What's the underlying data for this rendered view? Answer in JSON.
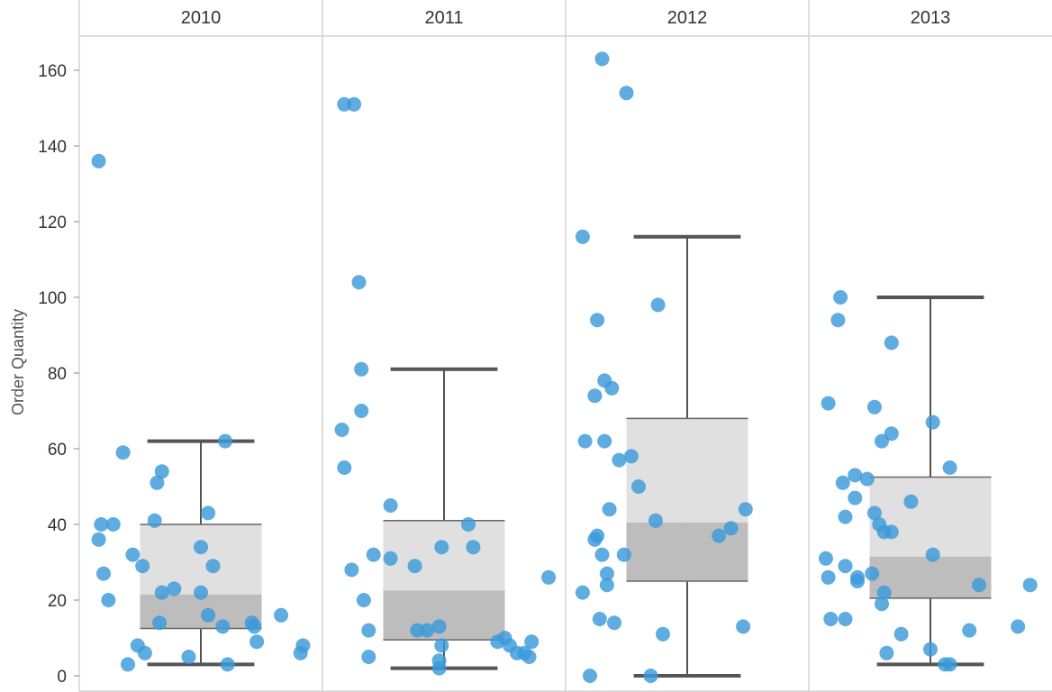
{
  "chart_data": {
    "type": "scatter",
    "subtype": "box-plot-with-jittered-points",
    "ylabel": "Order Quantity",
    "ylim": [
      0,
      170
    ],
    "yticks": [
      0,
      20,
      40,
      60,
      80,
      100,
      120,
      140,
      160
    ],
    "grid": false,
    "point_color": "#3a9ad9",
    "box_upper_color": "#e0e0e0",
    "box_lower_color": "#bdbdbd",
    "whisker_color": "#555555",
    "panels": [
      {
        "year": "2010",
        "box": {
          "whisker_low": 3,
          "q1": 12.5,
          "median": 21.5,
          "q3": 40,
          "whisker_high": 62
        },
        "points": [
          {
            "x": 0.08,
            "y": 136
          },
          {
            "x": 0.08,
            "y": 36
          },
          {
            "x": 0.09,
            "y": 40
          },
          {
            "x": 0.1,
            "y": 27
          },
          {
            "x": 0.12,
            "y": 20
          },
          {
            "x": 0.14,
            "y": 40
          },
          {
            "x": 0.18,
            "y": 59
          },
          {
            "x": 0.2,
            "y": 3
          },
          {
            "x": 0.22,
            "y": 32
          },
          {
            "x": 0.24,
            "y": 8
          },
          {
            "x": 0.26,
            "y": 29
          },
          {
            "x": 0.27,
            "y": 6
          },
          {
            "x": 0.31,
            "y": 41
          },
          {
            "x": 0.32,
            "y": 51
          },
          {
            "x": 0.33,
            "y": 14
          },
          {
            "x": 0.34,
            "y": 54
          },
          {
            "x": 0.34,
            "y": 22
          },
          {
            "x": 0.39,
            "y": 23
          },
          {
            "x": 0.45,
            "y": 5
          },
          {
            "x": 0.5,
            "y": 34
          },
          {
            "x": 0.5,
            "y": 22
          },
          {
            "x": 0.53,
            "y": 16
          },
          {
            "x": 0.53,
            "y": 43
          },
          {
            "x": 0.55,
            "y": 29
          },
          {
            "x": 0.59,
            "y": 13
          },
          {
            "x": 0.6,
            "y": 62
          },
          {
            "x": 0.61,
            "y": 3
          },
          {
            "x": 0.71,
            "y": 14
          },
          {
            "x": 0.72,
            "y": 13
          },
          {
            "x": 0.73,
            "y": 9
          },
          {
            "x": 0.83,
            "y": 16
          },
          {
            "x": 0.91,
            "y": 6
          },
          {
            "x": 0.92,
            "y": 8
          }
        ]
      },
      {
        "year": "2011",
        "box": {
          "whisker_low": 2,
          "q1": 9.5,
          "median": 22.5,
          "q3": 41,
          "whisker_high": 81
        },
        "points": [
          {
            "x": 0.08,
            "y": 65
          },
          {
            "x": 0.09,
            "y": 55
          },
          {
            "x": 0.09,
            "y": 151
          },
          {
            "x": 0.12,
            "y": 28
          },
          {
            "x": 0.13,
            "y": 151
          },
          {
            "x": 0.15,
            "y": 104
          },
          {
            "x": 0.16,
            "y": 70
          },
          {
            "x": 0.16,
            "y": 81
          },
          {
            "x": 0.17,
            "y": 20
          },
          {
            "x": 0.19,
            "y": 5
          },
          {
            "x": 0.19,
            "y": 12
          },
          {
            "x": 0.21,
            "y": 32
          },
          {
            "x": 0.28,
            "y": 45
          },
          {
            "x": 0.28,
            "y": 31
          },
          {
            "x": 0.38,
            "y": 29
          },
          {
            "x": 0.39,
            "y": 12
          },
          {
            "x": 0.43,
            "y": 12
          },
          {
            "x": 0.48,
            "y": 13
          },
          {
            "x": 0.48,
            "y": 4
          },
          {
            "x": 0.48,
            "y": 2
          },
          {
            "x": 0.49,
            "y": 34
          },
          {
            "x": 0.49,
            "y": 8
          },
          {
            "x": 0.6,
            "y": 40
          },
          {
            "x": 0.62,
            "y": 34
          },
          {
            "x": 0.72,
            "y": 9
          },
          {
            "x": 0.75,
            "y": 10
          },
          {
            "x": 0.77,
            "y": 8
          },
          {
            "x": 0.8,
            "y": 6
          },
          {
            "x": 0.83,
            "y": 6
          },
          {
            "x": 0.85,
            "y": 5
          },
          {
            "x": 0.86,
            "y": 9
          },
          {
            "x": 0.93,
            "y": 26
          }
        ]
      },
      {
        "year": "2012",
        "box": {
          "whisker_low": 0,
          "q1": 25,
          "median": 40.5,
          "q3": 68,
          "whisker_high": 116
        },
        "points": [
          {
            "x": 0.07,
            "y": 116
          },
          {
            "x": 0.07,
            "y": 22
          },
          {
            "x": 0.08,
            "y": 62
          },
          {
            "x": 0.1,
            "y": 0
          },
          {
            "x": 0.12,
            "y": 36
          },
          {
            "x": 0.12,
            "y": 74
          },
          {
            "x": 0.13,
            "y": 37
          },
          {
            "x": 0.13,
            "y": 94
          },
          {
            "x": 0.14,
            "y": 15
          },
          {
            "x": 0.15,
            "y": 32
          },
          {
            "x": 0.15,
            "y": 163
          },
          {
            "x": 0.16,
            "y": 62
          },
          {
            "x": 0.16,
            "y": 78
          },
          {
            "x": 0.17,
            "y": 27
          },
          {
            "x": 0.17,
            "y": 24
          },
          {
            "x": 0.18,
            "y": 44
          },
          {
            "x": 0.19,
            "y": 76
          },
          {
            "x": 0.2,
            "y": 14
          },
          {
            "x": 0.22,
            "y": 57
          },
          {
            "x": 0.24,
            "y": 32
          },
          {
            "x": 0.25,
            "y": 154
          },
          {
            "x": 0.27,
            "y": 58
          },
          {
            "x": 0.3,
            "y": 50
          },
          {
            "x": 0.35,
            "y": 0
          },
          {
            "x": 0.37,
            "y": 41
          },
          {
            "x": 0.38,
            "y": 98
          },
          {
            "x": 0.4,
            "y": 11
          },
          {
            "x": 0.63,
            "y": 37
          },
          {
            "x": 0.68,
            "y": 39
          },
          {
            "x": 0.73,
            "y": 13
          },
          {
            "x": 0.74,
            "y": 44
          }
        ]
      },
      {
        "year": "2013",
        "box": {
          "whisker_low": 3,
          "q1": 20.5,
          "median": 31.5,
          "q3": 52.5,
          "whisker_high": 100
        },
        "points": [
          {
            "x": 0.07,
            "y": 31
          },
          {
            "x": 0.08,
            "y": 26
          },
          {
            "x": 0.08,
            "y": 72
          },
          {
            "x": 0.09,
            "y": 15
          },
          {
            "x": 0.12,
            "y": 94
          },
          {
            "x": 0.13,
            "y": 100
          },
          {
            "x": 0.14,
            "y": 51
          },
          {
            "x": 0.15,
            "y": 42
          },
          {
            "x": 0.15,
            "y": 29
          },
          {
            "x": 0.15,
            "y": 15
          },
          {
            "x": 0.19,
            "y": 47
          },
          {
            "x": 0.19,
            "y": 53
          },
          {
            "x": 0.2,
            "y": 25
          },
          {
            "x": 0.2,
            "y": 26
          },
          {
            "x": 0.24,
            "y": 52
          },
          {
            "x": 0.26,
            "y": 27
          },
          {
            "x": 0.27,
            "y": 43
          },
          {
            "x": 0.27,
            "y": 71
          },
          {
            "x": 0.29,
            "y": 40
          },
          {
            "x": 0.3,
            "y": 62
          },
          {
            "x": 0.3,
            "y": 19
          },
          {
            "x": 0.31,
            "y": 38
          },
          {
            "x": 0.31,
            "y": 22
          },
          {
            "x": 0.32,
            "y": 6
          },
          {
            "x": 0.34,
            "y": 38
          },
          {
            "x": 0.34,
            "y": 64
          },
          {
            "x": 0.34,
            "y": 88
          },
          {
            "x": 0.38,
            "y": 11
          },
          {
            "x": 0.42,
            "y": 46
          },
          {
            "x": 0.5,
            "y": 7
          },
          {
            "x": 0.51,
            "y": 67
          },
          {
            "x": 0.51,
            "y": 32
          },
          {
            "x": 0.56,
            "y": 3
          },
          {
            "x": 0.58,
            "y": 3
          },
          {
            "x": 0.58,
            "y": 55
          },
          {
            "x": 0.66,
            "y": 12
          },
          {
            "x": 0.7,
            "y": 24
          },
          {
            "x": 0.86,
            "y": 13
          },
          {
            "x": 0.91,
            "y": 24
          }
        ]
      }
    ]
  }
}
